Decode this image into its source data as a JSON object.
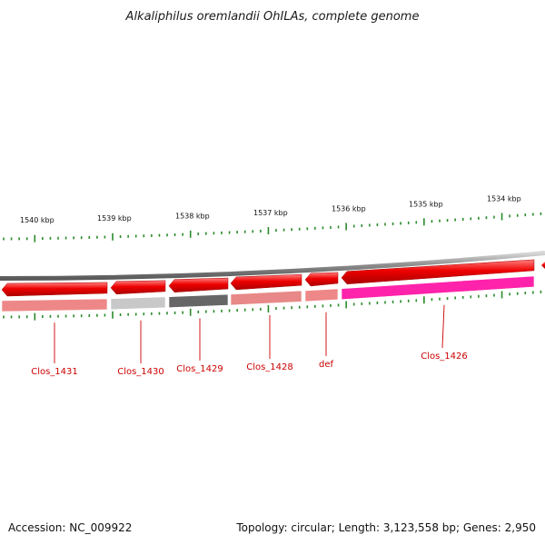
{
  "title": "Alkaliphilus oremlandii OhILAs, complete genome",
  "footer": {
    "accession": "Accession: NC_009922",
    "summary": "Topology: circular; Length: 3,123,558 bp; Genes: 2,950"
  },
  "colors": {
    "backbone": "#8a8a8a",
    "gene_forward": "#ee0000",
    "tick": "#2a8a2a",
    "label": "#cc0000"
  },
  "tick_labels": [
    {
      "text": "1540 kbp"
    },
    {
      "text": "1539 kbp"
    },
    {
      "text": "1538 kbp"
    },
    {
      "text": "1537 kbp"
    },
    {
      "text": "1536 kbp"
    },
    {
      "text": "1535 kbp"
    },
    {
      "text": "1534 kbp"
    }
  ],
  "genes": [
    {
      "label": "Clos_1431",
      "band_color": "#ee8888"
    },
    {
      "label": "Clos_1430",
      "band_color": "#c8c8c8"
    },
    {
      "label": "Clos_1429",
      "band_color": "#666666"
    },
    {
      "label": "Clos_1428",
      "band_color": "#e88888"
    },
    {
      "label": "def",
      "band_color": "#ee8888"
    },
    {
      "label": "Clos_1426",
      "band_color": "#ff22aa"
    }
  ]
}
